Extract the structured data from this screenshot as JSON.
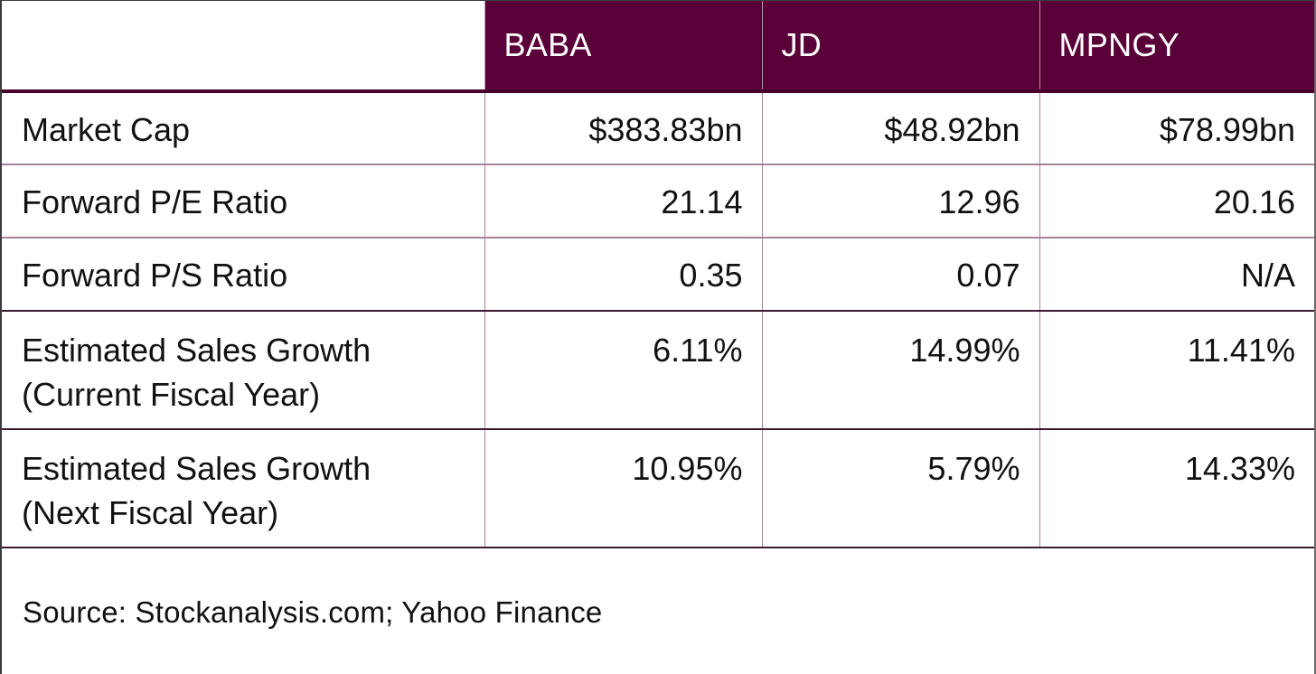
{
  "table": {
    "columns": [
      "",
      "BABA",
      "JD",
      "MPNGY"
    ],
    "rows": [
      {
        "label": "Market Cap",
        "values": [
          "$383.83bn",
          "$48.92bn",
          "$78.99bn"
        ]
      },
      {
        "label": "Forward P/E Ratio",
        "values": [
          "21.14",
          "12.96",
          "20.16"
        ]
      },
      {
        "label": "Forward P/S Ratio",
        "values": [
          "0.35",
          "0.07",
          "N/A"
        ]
      },
      {
        "label": "Estimated Sales Growth (Current Fiscal Year)",
        "label_lines": [
          "Estimated Sales Growth",
          "(Current Fiscal Year)"
        ],
        "values": [
          "6.11%",
          "14.99%",
          "11.41%"
        ]
      },
      {
        "label": "Estimated Sales Growth (Next Fiscal Year)",
        "label_lines": [
          "Estimated Sales Growth",
          "(Next Fiscal Year)"
        ],
        "values": [
          "10.95%",
          "5.79%",
          "14.33%"
        ]
      }
    ]
  },
  "source": "Source: Stockanalysis.com; Yahoo Finance",
  "colors": {
    "header_bg": "#5a0038",
    "header_text": "#ffffff",
    "grid_line": "#a8829c",
    "dark_line": "#3d1a30"
  }
}
